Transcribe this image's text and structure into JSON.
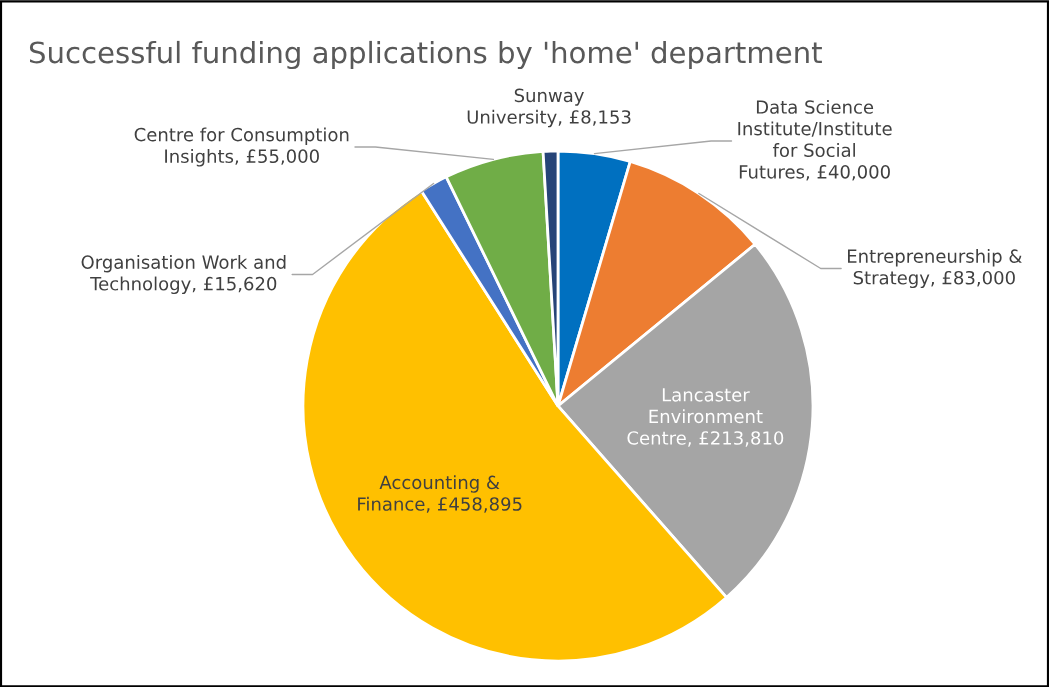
{
  "chart_data": {
    "type": "pie",
    "title": "Successful funding applications by 'home' department",
    "categories": [
      "Data Science Institute/Institute for Social Futures",
      "Entrepreneurship & Strategy",
      "Lancaster Environment Centre",
      "Accounting & Finance",
      "Organisation Work and Technology",
      "Centre for Consumption Insights",
      "Sunway University"
    ],
    "values": [
      40000,
      83000,
      213810,
      458895,
      15620,
      55000,
      8153
    ],
    "value_labels": [
      "£40,000",
      "£83,000",
      "£213,810",
      "£458,895",
      "£15,620",
      "£55,000",
      "£8,153"
    ],
    "colors": [
      "#0070c0",
      "#ed7d31",
      "#a5a5a5",
      "#ffc000",
      "#4472c4",
      "#70ad47",
      "#264478"
    ],
    "legend": false
  }
}
